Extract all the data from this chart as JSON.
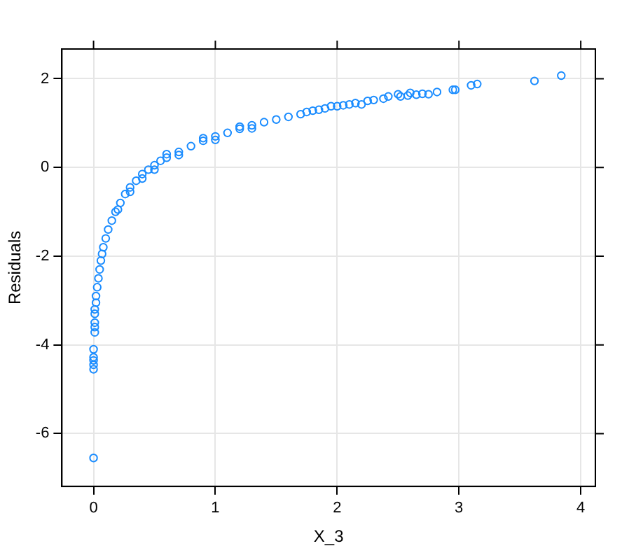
{
  "chart_data": {
    "type": "scatter",
    "xlabel": "X_3",
    "ylabel": "Residuals",
    "xlim": [
      -0.26,
      4.12
    ],
    "ylim": [
      -7.19,
      2.67
    ],
    "xticks": [
      0,
      1,
      2,
      3,
      4
    ],
    "yticks": [
      -6,
      -4,
      -2,
      0,
      2
    ],
    "grid": true,
    "marker": "circle",
    "series": [
      {
        "color": "#1a8cff",
        "x": [
          0,
          0,
          0,
          0,
          0,
          0,
          0.01,
          0.01,
          0.01,
          0.01,
          0.01,
          0.02,
          0.02,
          0.03,
          0.04,
          0.05,
          0.06,
          0.07,
          0.08,
          0.1,
          0.12,
          0.15,
          0.18,
          0.22,
          0.26,
          0.3,
          0.35,
          0.4,
          0.45,
          0.5,
          0.55,
          0.6,
          0.7,
          0.8,
          0.9,
          1.0,
          1.1,
          1.2,
          1.3,
          1.4,
          1.5,
          1.6,
          1.7,
          1.75,
          1.8,
          1.85,
          1.9,
          1.95,
          2.0,
          2.05,
          2.1,
          2.15,
          2.2,
          2.25,
          2.3,
          2.38,
          2.42,
          2.5,
          2.52,
          2.58,
          2.6,
          2.65,
          2.7,
          2.75,
          2.82,
          2.95,
          2.97,
          3.1,
          3.15,
          3.62,
          3.84,
          0.3,
          0.5,
          0.7,
          1.0,
          1.3,
          0.2,
          0.4,
          0.6,
          0.9,
          1.2
        ],
        "values": [
          -6.55,
          -4.55,
          -4.45,
          -4.35,
          -4.28,
          -4.1,
          -3.72,
          -3.6,
          -3.5,
          -3.3,
          -3.2,
          -3.05,
          -2.9,
          -2.7,
          -2.5,
          -2.3,
          -2.1,
          -1.95,
          -1.8,
          -1.6,
          -1.4,
          -1.2,
          -1.0,
          -0.8,
          -0.6,
          -0.45,
          -0.3,
          -0.15,
          -0.05,
          0.05,
          0.15,
          0.22,
          0.35,
          0.48,
          0.6,
          0.7,
          0.78,
          0.87,
          0.95,
          1.02,
          1.08,
          1.14,
          1.2,
          1.25,
          1.28,
          1.3,
          1.33,
          1.38,
          1.38,
          1.4,
          1.42,
          1.45,
          1.42,
          1.5,
          1.52,
          1.55,
          1.6,
          1.65,
          1.6,
          1.62,
          1.68,
          1.64,
          1.66,
          1.65,
          1.7,
          1.75,
          1.75,
          1.85,
          1.88,
          1.95,
          2.07,
          -0.55,
          -0.05,
          0.28,
          0.62,
          0.88,
          -0.95,
          -0.25,
          0.3,
          0.66,
          0.92
        ]
      }
    ]
  }
}
